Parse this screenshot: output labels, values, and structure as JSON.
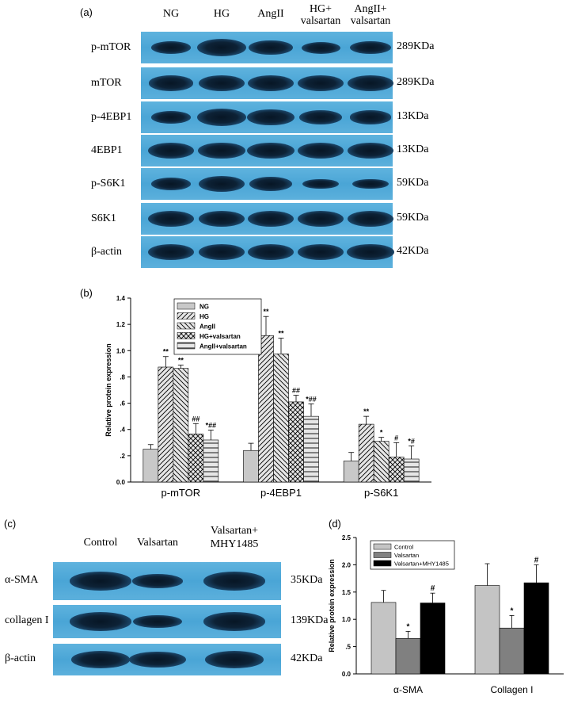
{
  "panel_a": {
    "label": "(a)",
    "lanes": [
      "NG",
      "HG",
      "AngII",
      "HG+\nvalsartan",
      "AngII+\nvalsartan"
    ],
    "rows": [
      {
        "name": "p-mTOR",
        "kda": "289KDa",
        "bands": [
          0.55,
          1.0,
          0.75,
          0.5,
          0.6
        ]
      },
      {
        "name": "mTOR",
        "kda": "289KDa",
        "bands": [
          0.8,
          0.85,
          0.85,
          0.85,
          0.85
        ]
      },
      {
        "name": "p-4EBP1",
        "kda": "13KDa",
        "bands": [
          0.55,
          1.0,
          0.9,
          0.7,
          0.65
        ]
      },
      {
        "name": "4EBP1",
        "kda": "13KDa",
        "bands": [
          0.85,
          0.9,
          0.9,
          0.85,
          0.85
        ]
      },
      {
        "name": "p-S6K1",
        "kda": "59KDa",
        "bands": [
          0.55,
          0.85,
          0.7,
          0.35,
          0.35
        ]
      },
      {
        "name": "S6K1",
        "kda": "59KDa",
        "bands": [
          0.85,
          0.85,
          0.85,
          0.85,
          0.85
        ]
      },
      {
        "name": "β-actin",
        "kda": "42KDa",
        "bands": [
          0.85,
          0.85,
          0.85,
          0.85,
          0.9
        ]
      }
    ]
  },
  "panel_c": {
    "label": "(c)",
    "lanes": [
      "Control",
      "Valsartan",
      "Valsartan+\nMHY1485"
    ],
    "rows": [
      {
        "name": "α-SMA",
        "kda": "35KDa",
        "bands": [
          0.95,
          0.6,
          0.95
        ]
      },
      {
        "name": "collagen I",
        "kda": "139KDa",
        "bands": [
          0.95,
          0.55,
          0.95
        ]
      },
      {
        "name": "β-actin",
        "kda": "42KDa",
        "bands": [
          0.85,
          0.8,
          0.85
        ]
      }
    ]
  },
  "chart_data": [
    {
      "panel": "(b)",
      "type": "bar",
      "title": "",
      "xlabel": "",
      "ylabel": "Relative protein expression",
      "ylim": [
        0,
        1.4
      ],
      "yticks": [
        "0.0",
        ".2",
        ".4",
        ".6",
        ".8",
        "1.0",
        "1.2",
        "1.4"
      ],
      "categories": [
        "p-mTOR",
        "p-4EBP1",
        "p-S6K1"
      ],
      "legend_position": "top-left",
      "series": [
        {
          "name": "NG",
          "pattern": "plain",
          "values": [
            0.25,
            0.24,
            0.16
          ],
          "errors": [
            0.035,
            0.055,
            0.065
          ],
          "annotations": [
            "",
            "",
            ""
          ]
        },
        {
          "name": "HG",
          "pattern": "hatch-right",
          "values": [
            0.875,
            1.115,
            0.44
          ],
          "errors": [
            0.08,
            0.145,
            0.06
          ],
          "annotations": [
            "**",
            "**",
            "**"
          ]
        },
        {
          "name": "AngII",
          "pattern": "hatch-left",
          "values": [
            0.865,
            0.975,
            0.31
          ],
          "errors": [
            0.025,
            0.12,
            0.03
          ],
          "annotations": [
            "**",
            "**",
            "*"
          ]
        },
        {
          "name": "HG+valsartan",
          "pattern": "crosshatch",
          "values": [
            0.365,
            0.61,
            0.19
          ],
          "errors": [
            0.08,
            0.05,
            0.11
          ],
          "annotations": [
            "##",
            "##",
            "#"
          ]
        },
        {
          "name": "AngII+valsartan",
          "pattern": "horizontal",
          "values": [
            0.32,
            0.5,
            0.175
          ],
          "errors": [
            0.075,
            0.095,
            0.1
          ],
          "annotations": [
            "*##",
            "*##",
            "*#"
          ]
        }
      ],
      "colors": {
        "plain": "#c8c8c8",
        "hatch_bg": "#e6e6e6"
      }
    },
    {
      "panel": "(d)",
      "type": "bar",
      "title": "",
      "xlabel": "",
      "ylabel": "Relative protein expression",
      "ylim": [
        0,
        2.5
      ],
      "yticks": [
        "0.0",
        ".5",
        "1.0",
        "1.5",
        "2.0",
        "2.5"
      ],
      "categories": [
        "α-SMA",
        "Collagen I"
      ],
      "legend_position": "top-left",
      "series": [
        {
          "name": "Control",
          "color": "#c4c4c4",
          "values": [
            1.31,
            1.62
          ],
          "errors": [
            0.22,
            0.4
          ],
          "annotations": [
            "",
            ""
          ]
        },
        {
          "name": "Valsartan",
          "color": "#808080",
          "values": [
            0.65,
            0.84
          ],
          "errors": [
            0.13,
            0.23
          ],
          "annotations": [
            "*",
            "*"
          ]
        },
        {
          "name": "Valsartan+MHY1485",
          "color": "#000000",
          "values": [
            1.3,
            1.67
          ],
          "errors": [
            0.18,
            0.33
          ],
          "annotations": [
            "#",
            "#"
          ]
        }
      ]
    }
  ]
}
